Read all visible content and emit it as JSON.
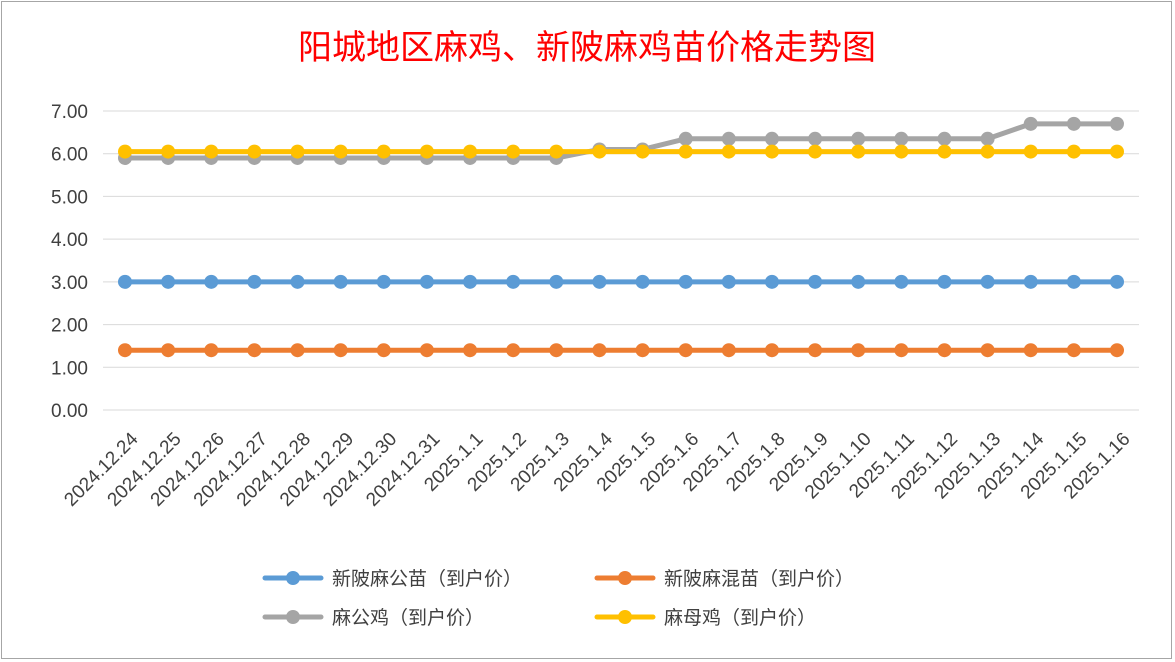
{
  "chart_data": {
    "type": "line",
    "title": "阳城地区麻鸡、新陂麻鸡苗价格走势图",
    "xlabel": "",
    "ylabel": "",
    "ylim": [
      0,
      7
    ],
    "y_ticks": [
      "0.00",
      "1.00",
      "2.00",
      "3.00",
      "4.00",
      "5.00",
      "6.00",
      "7.00"
    ],
    "grid": true,
    "legend_position": "bottom",
    "categories": [
      "2024.12.24",
      "2024.12.25",
      "2024.12.26",
      "2024.12.27",
      "2024.12.28",
      "2024.12.29",
      "2024.12.30",
      "2024.12.31",
      "2025.1.1",
      "2025.1.2",
      "2025.1.3",
      "2025.1.4",
      "2025.1.5",
      "2025.1.6",
      "2025.1.7",
      "2025.1.8",
      "2025.1.9",
      "2025.1.10",
      "2025.1.11",
      "2025.1.12",
      "2025.1.13",
      "2025.1.14",
      "2025.1.15",
      "2025.1.16"
    ],
    "series": [
      {
        "name": "新陂麻公苗（到户价）",
        "color": "#5b9bd5",
        "values": [
          3.0,
          3.0,
          3.0,
          3.0,
          3.0,
          3.0,
          3.0,
          3.0,
          3.0,
          3.0,
          3.0,
          3.0,
          3.0,
          3.0,
          3.0,
          3.0,
          3.0,
          3.0,
          3.0,
          3.0,
          3.0,
          3.0,
          3.0,
          3.0
        ]
      },
      {
        "name": "新陂麻混苗（到户价）",
        "color": "#ed7d31",
        "values": [
          1.4,
          1.4,
          1.4,
          1.4,
          1.4,
          1.4,
          1.4,
          1.4,
          1.4,
          1.4,
          1.4,
          1.4,
          1.4,
          1.4,
          1.4,
          1.4,
          1.4,
          1.4,
          1.4,
          1.4,
          1.4,
          1.4,
          1.4,
          1.4
        ]
      },
      {
        "name": "麻公鸡（到户价）",
        "color": "#a5a5a5",
        "values": [
          5.9,
          5.9,
          5.9,
          5.9,
          5.9,
          5.9,
          5.9,
          5.9,
          5.9,
          5.9,
          5.9,
          6.1,
          6.1,
          6.35,
          6.35,
          6.35,
          6.35,
          6.35,
          6.35,
          6.35,
          6.35,
          6.7,
          6.7,
          6.7
        ]
      },
      {
        "name": "麻母鸡（到户价）",
        "color": "#ffc000",
        "values": [
          6.05,
          6.05,
          6.05,
          6.05,
          6.05,
          6.05,
          6.05,
          6.05,
          6.05,
          6.05,
          6.05,
          6.05,
          6.05,
          6.05,
          6.05,
          6.05,
          6.05,
          6.05,
          6.05,
          6.05,
          6.05,
          6.05,
          6.05,
          6.05
        ]
      }
    ]
  }
}
